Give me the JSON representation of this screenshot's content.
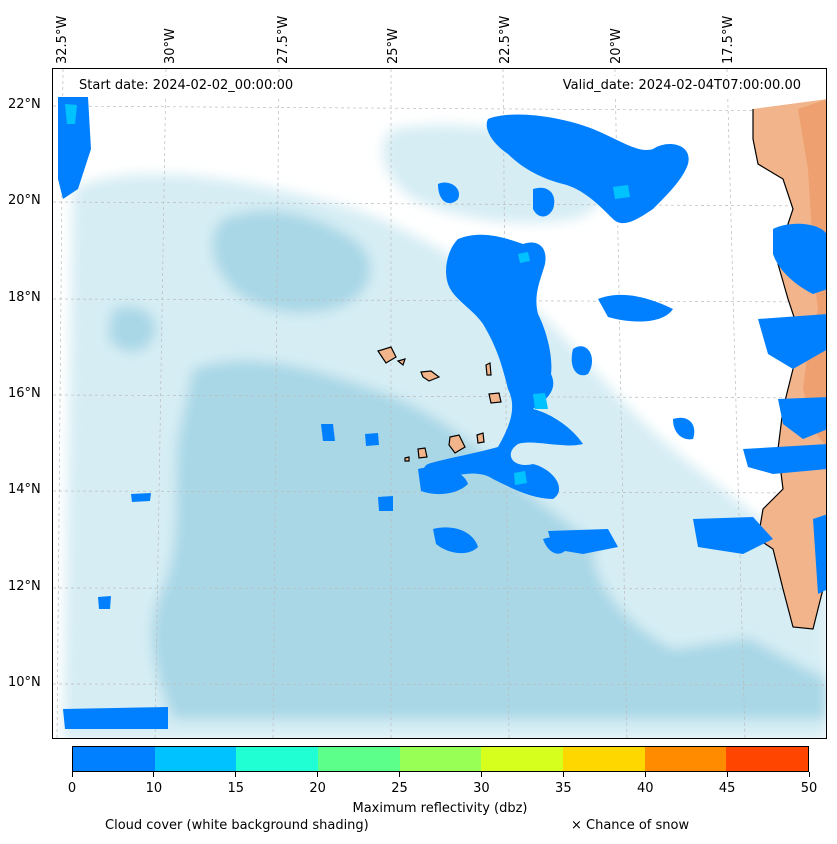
{
  "map": {
    "start_date": "Start date: 2024-02-02_00:00:00",
    "valid_date": "Valid_date: 2024-02-04T07:00:00.00",
    "lon_labels": [
      "32.5°W",
      "30°W",
      "27.5°W",
      "25°W",
      "22.5°W",
      "20°W",
      "17.5°W"
    ],
    "lat_labels": [
      "22°N",
      "20°N",
      "18°N",
      "16°N",
      "14°N",
      "12°N",
      "10°N"
    ],
    "colors": {
      "cloud": "#a9d7e6",
      "cloud_light": "#d6edf4",
      "reflectivity_low": "#0080ff",
      "reflectivity_mid": "#00c2ff",
      "land": "#f2b48a",
      "land_dark": "#eea070",
      "coastline": "#000000"
    }
  },
  "colorbar": {
    "title": "Maximum reflectivity (dbz)",
    "ticks": [
      "0",
      "10",
      "15",
      "20",
      "25",
      "30",
      "35",
      "40",
      "45",
      "50"
    ],
    "colors": [
      "#0080ff",
      "#00c2ff",
      "#20ffd4",
      "#5cff8a",
      "#98ff54",
      "#d6ff1e",
      "#ffd700",
      "#ff8c00",
      "#ff4500"
    ]
  },
  "legend": {
    "cloud_cover": "Cloud cover (white background shading)",
    "snow": "× Chance of snow"
  }
}
